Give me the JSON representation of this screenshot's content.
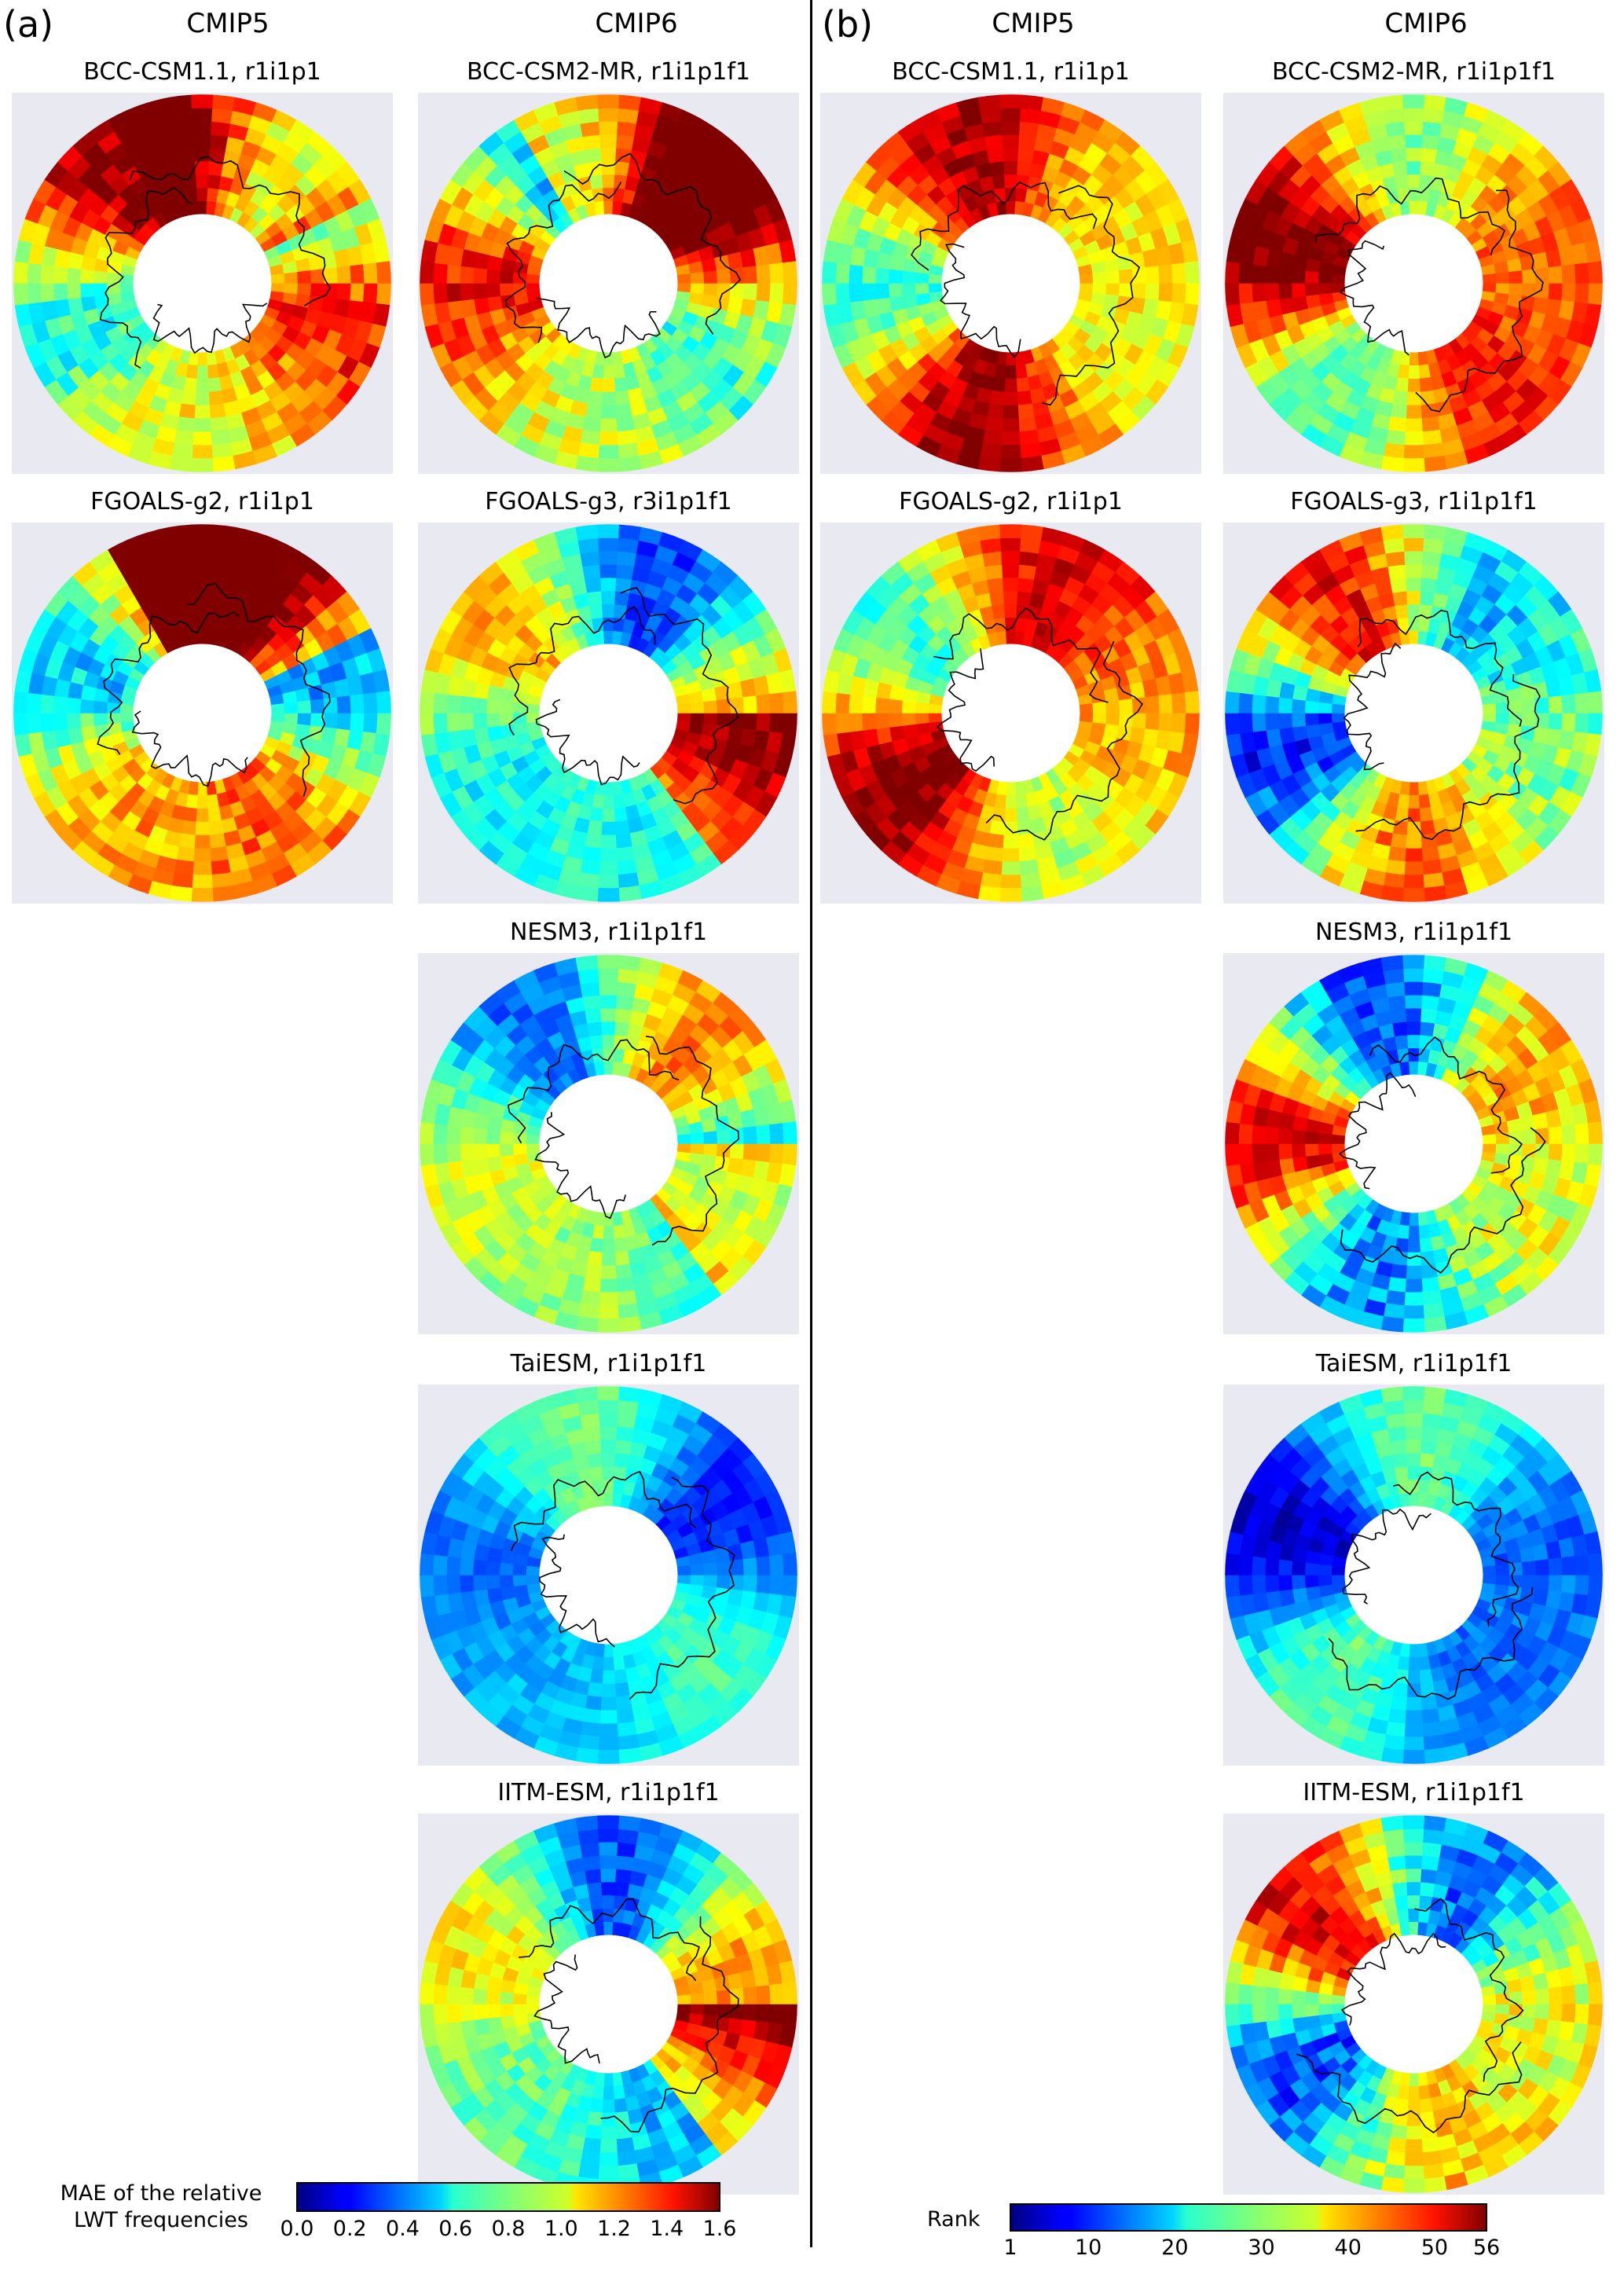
{
  "panels": [
    {
      "label": "(a)",
      "col_heads": [
        "CMIP5",
        "CMIP6"
      ]
    },
    {
      "label": "(b)",
      "col_heads": [
        "CMIP5",
        "CMIP6"
      ]
    }
  ],
  "maps_a": [
    {
      "title": "BCC-CSM1.1, r1i1p1",
      "scheme": "mae_high"
    },
    {
      "title": "BCC-CSM2-MR, r1i1p1f1",
      "scheme": "mae_high"
    },
    {
      "title": "FGOALS-g2, r1i1p1",
      "scheme": "mae_high"
    },
    {
      "title": "FGOALS-g3, r3i1p1f1",
      "scheme": "mae_mid"
    },
    {
      "title": "NESM3, r1i1p1f1",
      "scheme": "mae_mid"
    },
    {
      "title": "TaiESM, r1i1p1f1",
      "scheme": "mae_low"
    },
    {
      "title": "IITM-ESM, r1i1p1f1",
      "scheme": "mae_mid"
    }
  ],
  "maps_b": [
    {
      "title": "BCC-CSM1.1, r1i1p1",
      "scheme": "rank_high"
    },
    {
      "title": "BCC-CSM2-MR, r1i1p1f1",
      "scheme": "rank_high"
    },
    {
      "title": "FGOALS-g2, r1i1p1",
      "scheme": "rank_high"
    },
    {
      "title": "FGOALS-g3, r1i1p1f1",
      "scheme": "rank_mix"
    },
    {
      "title": "NESM3, r1i1p1f1",
      "scheme": "rank_mix"
    },
    {
      "title": "TaiESM, r1i1p1f1",
      "scheme": "rank_low"
    },
    {
      "title": "IITM-ESM, r1i1p1f1",
      "scheme": "rank_mix"
    }
  ],
  "colorbar_a": {
    "label_line1": "MAE of the relative",
    "label_line2": "LWT frequencies",
    "min": 0.0,
    "max": 1.6,
    "ticks": [
      "0.0",
      "0.2",
      "0.4",
      "0.6",
      "0.8",
      "1.0",
      "1.2",
      "1.4",
      "1.6"
    ]
  },
  "colorbar_b": {
    "label": "Rank",
    "min": 1,
    "max": 56,
    "ticks": [
      "1",
      "10",
      "20",
      "30",
      "40",
      "50",
      "56"
    ]
  },
  "colors": {
    "map_background": "#e9e9f1",
    "coast": "#000000",
    "colormap": "jet"
  }
}
